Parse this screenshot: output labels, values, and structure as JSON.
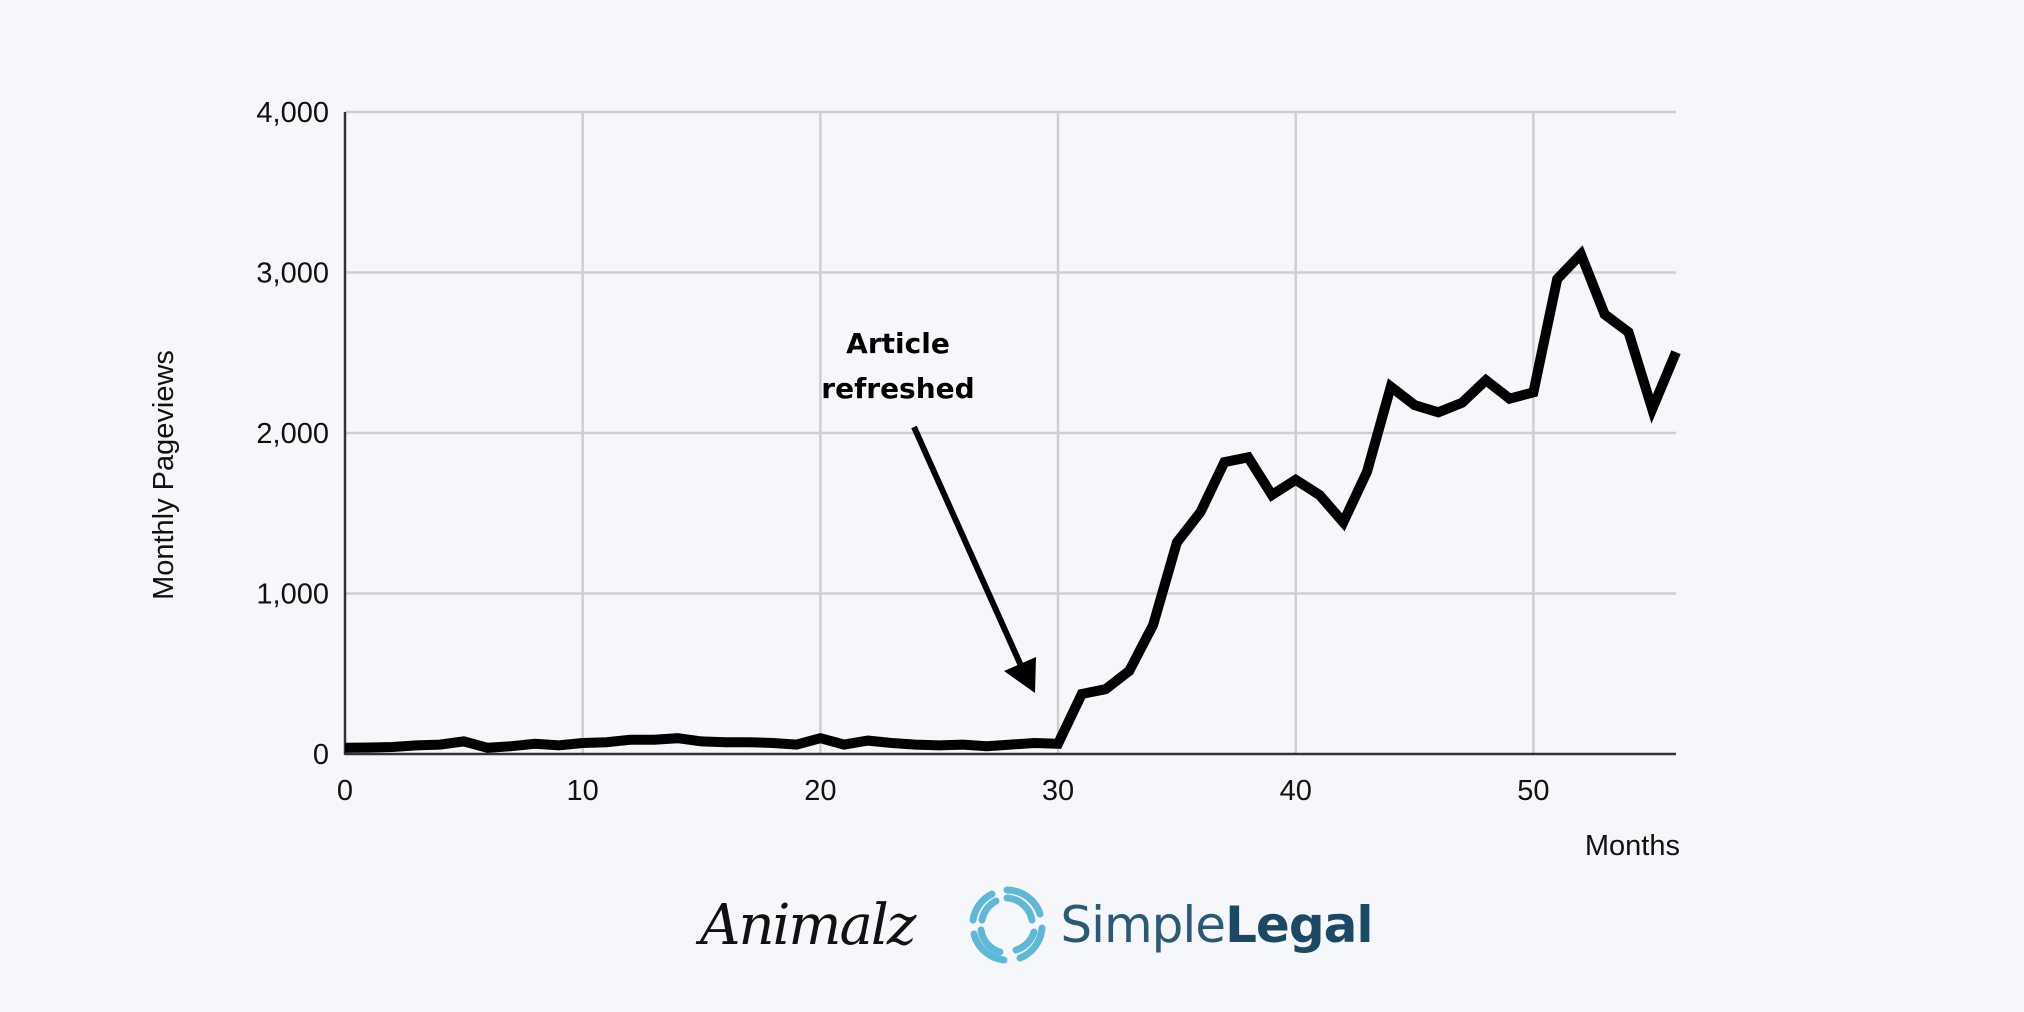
{
  "chart_data": {
    "type": "line",
    "title": "",
    "xlabel": "Months",
    "ylabel": "Monthly Pageviews",
    "xlim": [
      0,
      56
    ],
    "ylim": [
      0,
      4000
    ],
    "x_ticks": [
      0,
      10,
      20,
      30,
      40,
      50
    ],
    "y_ticks": [
      0,
      1000,
      2000,
      3000,
      4000
    ],
    "x_tick_labels": [
      "0",
      "10",
      "20",
      "30",
      "40",
      "50"
    ],
    "y_tick_labels": [
      "0",
      "1,000",
      "2,000",
      "3,000",
      "4,000"
    ],
    "grid": true,
    "legend": null,
    "series": [
      {
        "name": "Monthly Pageviews",
        "color": "#000000",
        "x": [
          0,
          1,
          2,
          3,
          4,
          5,
          6,
          7,
          8,
          9,
          10,
          11,
          12,
          13,
          14,
          15,
          16,
          17,
          18,
          19,
          20,
          21,
          22,
          23,
          24,
          25,
          26,
          27,
          28,
          29,
          30,
          31,
          32,
          33,
          34,
          35,
          36,
          37,
          38,
          39,
          40,
          41,
          42,
          43,
          44,
          45,
          46,
          47,
          48,
          49,
          50,
          51,
          52,
          53,
          54,
          55,
          56
        ],
        "values": [
          20,
          22,
          25,
          35,
          40,
          60,
          20,
          30,
          45,
          35,
          50,
          55,
          70,
          70,
          80,
          60,
          55,
          55,
          50,
          40,
          80,
          40,
          65,
          50,
          40,
          35,
          40,
          30,
          40,
          50,
          45,
          355,
          385,
          500,
          785,
          1300,
          1490,
          1800,
          1830,
          1595,
          1690,
          1595,
          1425,
          1740,
          2270,
          2155,
          2110,
          2170,
          2310,
          2195,
          2235,
          2940,
          3095,
          2720,
          2610,
          2130,
          2485
        ]
      }
    ],
    "annotations": [
      {
        "text_lines": [
          "Article",
          "refreshed"
        ],
        "arrow_from": [
          24.5,
          2000
        ],
        "arrow_to": [
          29.2,
          400
        ]
      }
    ]
  },
  "footer": {
    "logo_left": "Animalz",
    "logo_right_light": "Simple",
    "logo_right_bold": "Legal",
    "logo_right_color": "#5fb8d6"
  }
}
